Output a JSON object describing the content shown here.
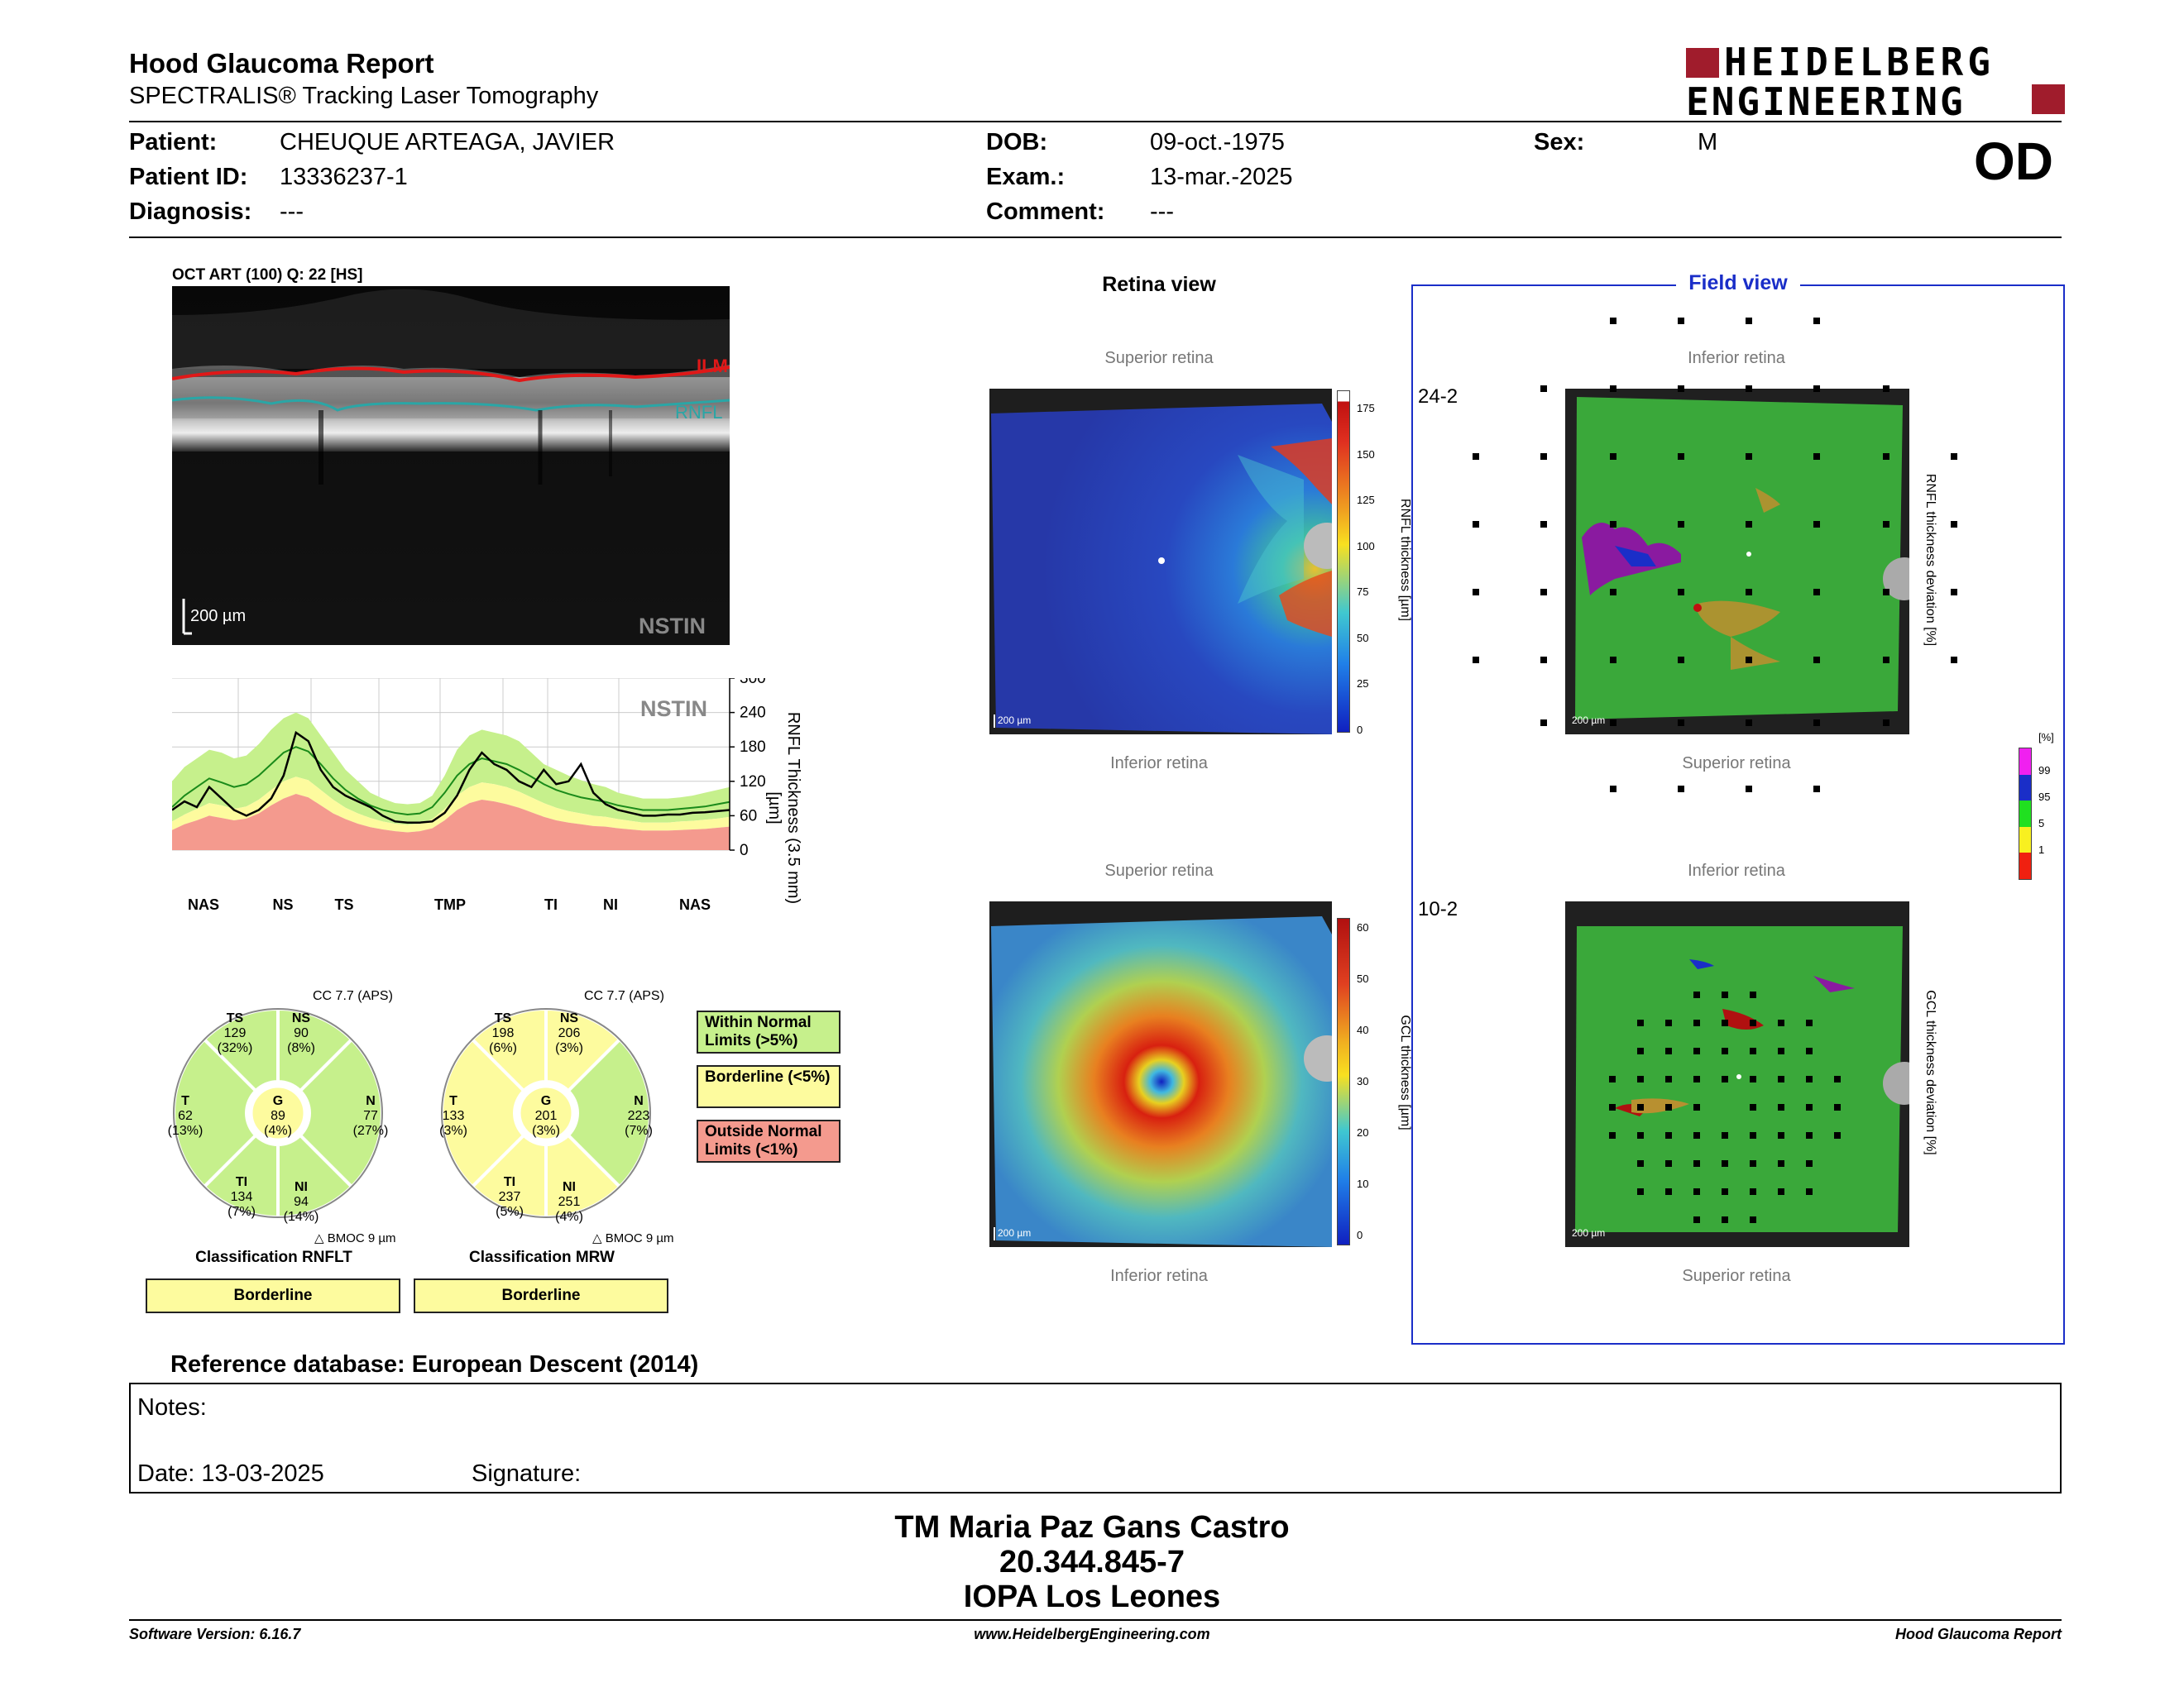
{
  "header": {
    "title": "Hood Glaucoma Report",
    "subtitle": "SPECTRALIS® Tracking Laser Tomography",
    "logo_line1": "HEIDELBERG",
    "logo_line2": "ENGINEERING",
    "eye": "OD"
  },
  "patient": {
    "patient_label": "Patient:",
    "patient_value": "CHEUQUE ARTEAGA, JAVIER",
    "id_label": "Patient ID:",
    "id_value": "13336237-1",
    "diagnosis_label": "Diagnosis:",
    "diagnosis_value": "---",
    "dob_label": "DOB:",
    "dob_value": "09-oct.-1975",
    "exam_label": "Exam.:",
    "exam_value": "13-mar.-2025",
    "comment_label": "Comment:",
    "comment_value": "---",
    "sex_label": "Sex:",
    "sex_value": "M"
  },
  "bscan": {
    "caption": "OCT ART (100) Q: 22 [HS]",
    "ilm": "ILM",
    "rnfl": "RNFL",
    "scale": "200 µm",
    "mode": "NSTIN"
  },
  "chart_data": {
    "type": "line",
    "title": "NSTIN",
    "ylabel": "RNFL Thickness (3.5 mm) [µm]",
    "ylim": [
      0,
      300
    ],
    "yticks": [
      0,
      60,
      120,
      180,
      240,
      300
    ],
    "sector_labels": [
      "NAS",
      "NS",
      "TS",
      "TMP",
      "TI",
      "NI",
      "NAS"
    ],
    "x": [
      0,
      8,
      16,
      24,
      32,
      40,
      48,
      56,
      64,
      72,
      80,
      88,
      96,
      104,
      112,
      120,
      128,
      136,
      144,
      152,
      160,
      168,
      176,
      184,
      192,
      200,
      208,
      216,
      224,
      232,
      240,
      248,
      256,
      264,
      272,
      280,
      288,
      296,
      304,
      312,
      320,
      328,
      336,
      344,
      352,
      360
    ],
    "series": [
      {
        "values": [
          70,
          85,
          75,
          110,
          90,
          70,
          60,
          70,
          90,
          130,
          205,
          190,
          140,
          110,
          95,
          85,
          75,
          60,
          50,
          48,
          48,
          50,
          65,
          95,
          140,
          170,
          150,
          140,
          120,
          110,
          140,
          115,
          120,
          150,
          100,
          80,
          70,
          65,
          60,
          60,
          62,
          62,
          65,
          66,
          68,
          70
        ]
      }
    ],
    "normal_band": {
      "upper": [
        120,
        145,
        160,
        175,
        170,
        160,
        165,
        185,
        210,
        230,
        240,
        230,
        200,
        170,
        140,
        120,
        100,
        90,
        82,
        80,
        82,
        95,
        130,
        175,
        200,
        210,
        205,
        200,
        190,
        170,
        150,
        140,
        130,
        122,
        115,
        110,
        100,
        95,
        90,
        90,
        90,
        92,
        95,
        100,
        105,
        110
      ],
      "mean": [
        75,
        95,
        110,
        125,
        118,
        110,
        115,
        130,
        150,
        170,
        180,
        172,
        150,
        125,
        105,
        90,
        78,
        70,
        65,
        62,
        64,
        75,
        100,
        130,
        150,
        160,
        155,
        150,
        140,
        128,
        115,
        105,
        98,
        92,
        88,
        84,
        78,
        74,
        70,
        70,
        70,
        72,
        74,
        76,
        80,
        84
      ],
      "borderline": [
        50,
        62,
        72,
        82,
        78,
        72,
        76,
        88,
        105,
        120,
        128,
        122,
        105,
        88,
        74,
        64,
        56,
        50,
        46,
        44,
        46,
        54,
        72,
        95,
        110,
        118,
        115,
        110,
        102,
        92,
        82,
        74,
        68,
        64,
        60,
        58,
        54,
        51,
        48,
        48,
        48,
        50,
        51,
        53,
        55,
        58
      ],
      "outside": [
        35,
        45,
        52,
        60,
        56,
        52,
        55,
        64,
        78,
        90,
        98,
        92,
        78,
        64,
        54,
        46,
        40,
        36,
        33,
        31,
        33,
        38,
        52,
        70,
        82,
        88,
        85,
        80,
        74,
        66,
        58,
        52,
        48,
        45,
        42,
        41,
        38,
        36,
        34,
        34,
        34,
        35,
        36,
        37,
        39,
        41
      ]
    }
  },
  "rnflt_circle": {
    "cc": "CC 7.7 (APS)",
    "sectors": {
      "TS": {
        "name": "TS",
        "val": "129",
        "pct": "(32%)"
      },
      "NS": {
        "name": "NS",
        "val": "90",
        "pct": "(8%)"
      },
      "T": {
        "name": "T",
        "val": "62",
        "pct": "(13%)"
      },
      "G": {
        "name": "G",
        "val": "89",
        "pct": "(4%)"
      },
      "N": {
        "name": "N",
        "val": "77",
        "pct": "(27%)"
      },
      "TI": {
        "name": "TI",
        "val": "134",
        "pct": "(7%)"
      },
      "NI": {
        "name": "NI",
        "val": "94",
        "pct": "(14%)"
      }
    },
    "bmoc": "BMOC 9 µm",
    "classification_label": "Classification RNFLT",
    "classification": "Borderline"
  },
  "mrw_circle": {
    "cc": "CC 7.7 (APS)",
    "sectors": {
      "TS": {
        "name": "TS",
        "val": "198",
        "pct": "(6%)"
      },
      "NS": {
        "name": "NS",
        "val": "206",
        "pct": "(3%)"
      },
      "T": {
        "name": "T",
        "val": "133",
        "pct": "(3%)"
      },
      "G": {
        "name": "G",
        "val": "201",
        "pct": "(3%)"
      },
      "N": {
        "name": "N",
        "val": "223",
        "pct": "(7%)"
      },
      "TI": {
        "name": "TI",
        "val": "237",
        "pct": "(5%)"
      },
      "NI": {
        "name": "NI",
        "val": "251",
        "pct": "(4%)"
      }
    },
    "bmoc": "BMOC 9 µm",
    "classification_label": "Classification MRW",
    "classification": "Borderline"
  },
  "classification_legend": {
    "within": "Within Normal Limits (>5%)",
    "borderline": "Borderline (<5%)",
    "outside": "Outside Normal Limits (<1%)"
  },
  "retina_view": {
    "title": "Retina view",
    "top1": "Superior retina",
    "bottom1": "Inferior retina",
    "top2": "Superior retina",
    "bottom2": "Inferior retina",
    "rnfl_axis": "RNFL thickness [µm]",
    "rnfl_ticks": [
      "175",
      "150",
      "125",
      "100",
      "75",
      "50",
      "25",
      "0"
    ],
    "gcl_axis": "GCL thickness [µm]",
    "gcl_ticks": [
      "60",
      "50",
      "40",
      "30",
      "20",
      "10",
      "0"
    ],
    "scale": "200 µm"
  },
  "field_view": {
    "title": "Field view",
    "label_242": "24-2",
    "label_102": "10-2",
    "top1": "Inferior retina",
    "bottom1": "Superior retina",
    "top2": "Inferior retina",
    "bottom2": "Superior retina",
    "rnfl_dev_axis": "RNFL thickness deviation [%]",
    "gcl_dev_axis": "GCL thickness deviation [%]",
    "pct_unit": "[%]",
    "pct_ticks": [
      "99",
      "95",
      "5",
      "1"
    ],
    "scale": "200 µm"
  },
  "reference_db": "Reference database: European Descent (2014)",
  "notes": {
    "notes_label": "Notes:",
    "date_label": "Date: 13-03-2025",
    "signature_label": "Signature:"
  },
  "signature_block": {
    "line1": "TM Maria Paz Gans Castro",
    "line2": "20.344.845-7",
    "line3": "IOPA Los Leones"
  },
  "footer": {
    "software": "Software Version: 6.16.7",
    "website": "www.HeidelbergEngineering.com",
    "report": "Hood Glaucoma Report"
  },
  "colors": {
    "within": "#c6f08c",
    "borderline": "#fdfb9e",
    "outside": "#f49a8e",
    "field_blue": "#1a2ec8",
    "logo_red": "#a01c2c"
  }
}
